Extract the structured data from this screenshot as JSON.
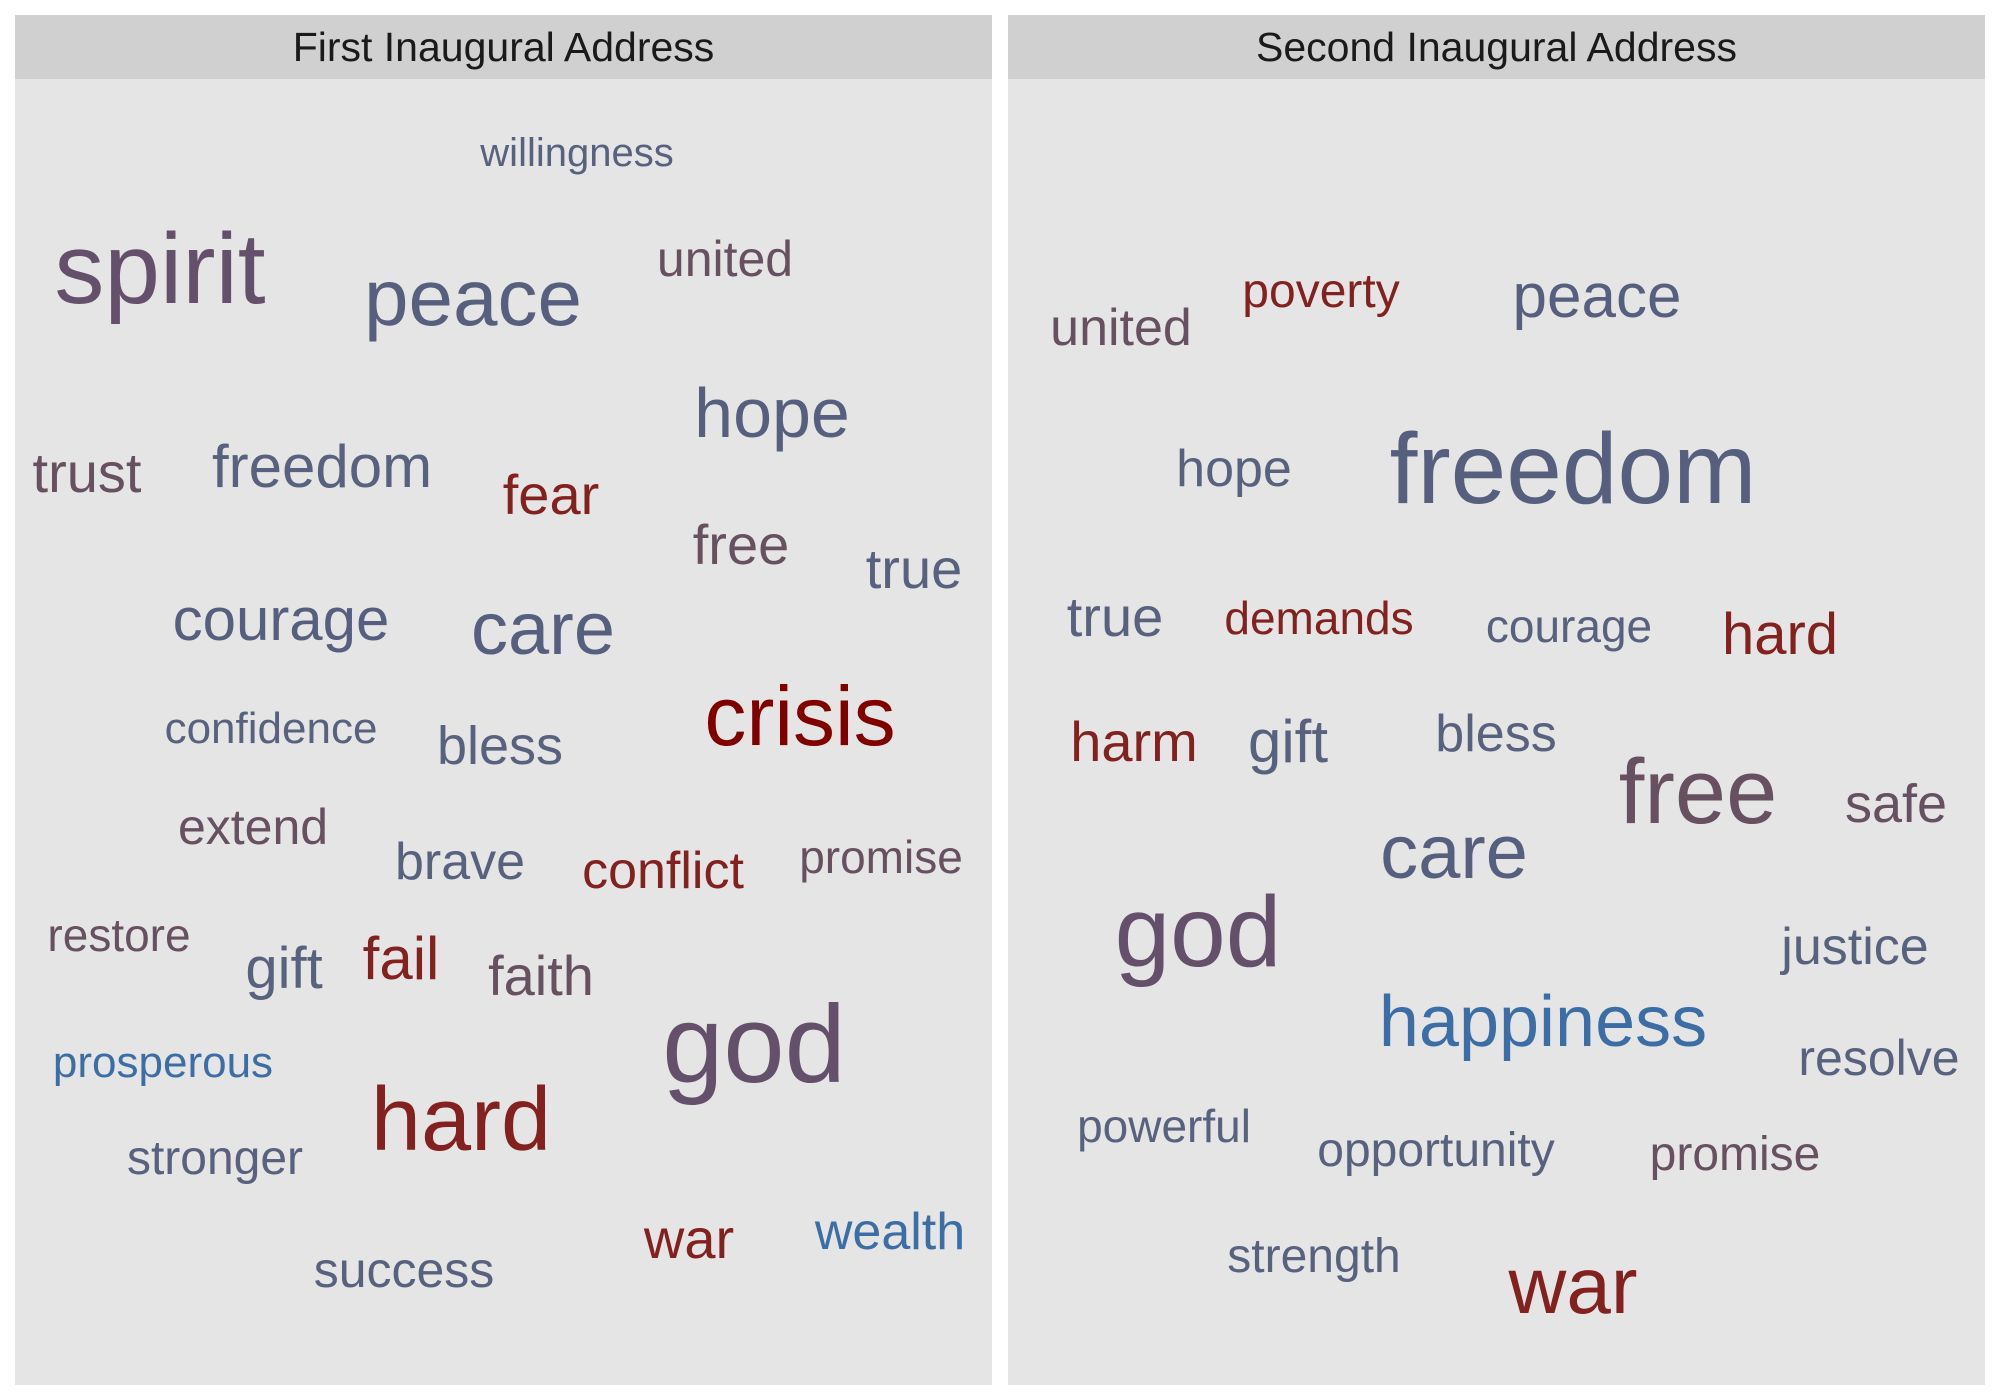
{
  "chart_data": {
    "type": "wordcloud",
    "color_scale": {
      "low": "#2d6fb5",
      "mid": "#56607e",
      "high": "#800000"
    },
    "panels": [
      {
        "title": "First Inaugural Address",
        "words": [
          {
            "text": "willingness",
            "color": "#58627e"
          },
          {
            "text": "spirit",
            "color": "#64506b"
          },
          {
            "text": "peace",
            "color": "#56607e"
          },
          {
            "text": "united",
            "color": "#675060"
          },
          {
            "text": "hope",
            "color": "#56607e"
          },
          {
            "text": "trust",
            "color": "#675060"
          },
          {
            "text": "freedom",
            "color": "#58627e"
          },
          {
            "text": "fear",
            "color": "#832020"
          },
          {
            "text": "free",
            "color": "#675060"
          },
          {
            "text": "true",
            "color": "#58627e"
          },
          {
            "text": "courage",
            "color": "#56607e"
          },
          {
            "text": "care",
            "color": "#56607e"
          },
          {
            "text": "crisis",
            "color": "#800000"
          },
          {
            "text": "confidence",
            "color": "#58627e"
          },
          {
            "text": "bless",
            "color": "#58627e"
          },
          {
            "text": "extend",
            "color": "#675060"
          },
          {
            "text": "brave",
            "color": "#58627e"
          },
          {
            "text": "conflict",
            "color": "#832020"
          },
          {
            "text": "promise",
            "color": "#675060"
          },
          {
            "text": "restore",
            "color": "#675060"
          },
          {
            "text": "gift",
            "color": "#58627e"
          },
          {
            "text": "fail",
            "color": "#832020"
          },
          {
            "text": "faith",
            "color": "#675060"
          },
          {
            "text": "prosperous",
            "color": "#3c6ea5"
          },
          {
            "text": "hard",
            "color": "#832020"
          },
          {
            "text": "god",
            "color": "#64506b"
          },
          {
            "text": "stronger",
            "color": "#58627e"
          },
          {
            "text": "war",
            "color": "#832020"
          },
          {
            "text": "wealth",
            "color": "#3c6ea5"
          },
          {
            "text": "success",
            "color": "#58627e"
          }
        ]
      },
      {
        "title": "Second Inaugural Address",
        "words": [
          {
            "text": "poverty",
            "color": "#832020"
          },
          {
            "text": "peace",
            "color": "#56607e"
          },
          {
            "text": "united",
            "color": "#675060"
          },
          {
            "text": "hope",
            "color": "#58627e"
          },
          {
            "text": "freedom",
            "color": "#56607e"
          },
          {
            "text": "true",
            "color": "#58627e"
          },
          {
            "text": "demands",
            "color": "#832020"
          },
          {
            "text": "courage",
            "color": "#58627e"
          },
          {
            "text": "hard",
            "color": "#832020"
          },
          {
            "text": "harm",
            "color": "#832020"
          },
          {
            "text": "gift",
            "color": "#58627e"
          },
          {
            "text": "bless",
            "color": "#58627e"
          },
          {
            "text": "free",
            "color": "#675060"
          },
          {
            "text": "safe",
            "color": "#675060"
          },
          {
            "text": "care",
            "color": "#56607e"
          },
          {
            "text": "god",
            "color": "#64506b"
          },
          {
            "text": "justice",
            "color": "#58627e"
          },
          {
            "text": "happiness",
            "color": "#3c6ea5"
          },
          {
            "text": "resolve",
            "color": "#58627e"
          },
          {
            "text": "powerful",
            "color": "#58627e"
          },
          {
            "text": "opportunity",
            "color": "#58627e"
          },
          {
            "text": "promise",
            "color": "#675060"
          },
          {
            "text": "strength",
            "color": "#58627e"
          },
          {
            "text": "war",
            "color": "#832020"
          }
        ]
      }
    ]
  }
}
